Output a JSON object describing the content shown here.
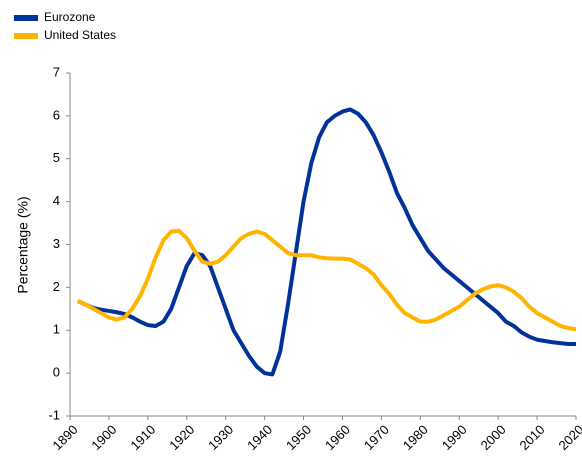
{
  "chart_data": {
    "type": "line",
    "y_label": "Percentage (%)",
    "legend": "top-left",
    "x": [
      1892,
      1894,
      1896,
      1898,
      1900,
      1902,
      1904,
      1906,
      1908,
      1910,
      1912,
      1914,
      1916,
      1918,
      1920,
      1922,
      1924,
      1926,
      1928,
      1930,
      1932,
      1934,
      1936,
      1938,
      1940,
      1942,
      1944,
      1946,
      1948,
      1950,
      1952,
      1954,
      1956,
      1958,
      1960,
      1962,
      1964,
      1966,
      1968,
      1970,
      1972,
      1974,
      1976,
      1978,
      1980,
      1982,
      1984,
      1986,
      1988,
      1990,
      1992,
      1994,
      1996,
      1998,
      2000,
      2002,
      2004,
      2006,
      2008,
      2010,
      2012,
      2014,
      2016,
      2018,
      2020
    ],
    "series": [
      {
        "name": "Eurozone",
        "color": "#003299",
        "values": [
          1.68,
          1.6,
          1.52,
          1.48,
          1.45,
          1.42,
          1.38,
          1.3,
          1.2,
          1.12,
          1.1,
          1.2,
          1.5,
          2.0,
          2.5,
          2.8,
          2.75,
          2.5,
          2.0,
          1.5,
          1.0,
          0.7,
          0.4,
          0.15,
          0.0,
          -0.03,
          0.5,
          1.6,
          2.8,
          4.0,
          4.9,
          5.5,
          5.85,
          6.0,
          6.1,
          6.15,
          6.05,
          5.85,
          5.55,
          5.15,
          4.7,
          4.2,
          3.85,
          3.45,
          3.15,
          2.85,
          2.65,
          2.45,
          2.3,
          2.15,
          2.0,
          1.85,
          1.7,
          1.55,
          1.4,
          1.2,
          1.1,
          0.95,
          0.85,
          0.78,
          0.75,
          0.72,
          0.7,
          0.68,
          0.68
        ]
      },
      {
        "name": "United States",
        "color": "#ffb400",
        "values": [
          1.68,
          1.6,
          1.5,
          1.4,
          1.3,
          1.25,
          1.3,
          1.5,
          1.8,
          2.2,
          2.7,
          3.1,
          3.3,
          3.32,
          3.15,
          2.85,
          2.6,
          2.55,
          2.6,
          2.75,
          2.95,
          3.15,
          3.25,
          3.3,
          3.25,
          3.1,
          2.95,
          2.8,
          2.75,
          2.75,
          2.75,
          2.7,
          2.68,
          2.67,
          2.67,
          2.65,
          2.55,
          2.45,
          2.3,
          2.05,
          1.85,
          1.6,
          1.4,
          1.3,
          1.2,
          1.2,
          1.25,
          1.35,
          1.45,
          1.55,
          1.7,
          1.85,
          1.95,
          2.02,
          2.05,
          2.0,
          1.9,
          1.75,
          1.55,
          1.4,
          1.3,
          1.2,
          1.1,
          1.05,
          1.02
        ]
      }
    ],
    "xlim": [
      1890,
      2020
    ],
    "xticks": [
      1890,
      1900,
      1910,
      1920,
      1930,
      1940,
      1950,
      1960,
      1970,
      1980,
      1990,
      2000,
      2010,
      2020
    ],
    "ylim": [
      -1,
      7
    ],
    "yticks": [
      -1,
      0,
      1,
      2,
      3,
      4,
      5,
      6,
      7
    ],
    "grid": false
  }
}
